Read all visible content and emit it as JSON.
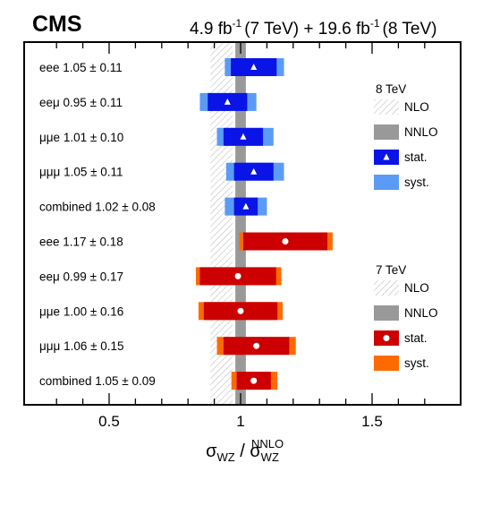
{
  "chart_data": {
    "type": "interval",
    "experiment": "CMS",
    "luminosity": {
      "lumi_7": "4.9 fb",
      "lumi_7_exp": "-1",
      "energy_7": "(7 TeV) + 19.6 fb",
      "lumi_8_exp": "-1",
      "energy_8": "(8 TeV)"
    },
    "xlabel": {
      "main_num": "σ",
      "num_sub": "WZ",
      "slash": " / ",
      "main_den": "σ",
      "den_sub": "WZ",
      "den_sup": "NNLO"
    },
    "xlim": [
      0.2,
      1.8
    ],
    "xticks": [
      {
        "value": 0.5,
        "label": "0.5"
      },
      {
        "value": 1.0,
        "label": "1"
      },
      {
        "value": 1.5,
        "label": "1.5"
      }
    ],
    "nnlo_band": [
      0.98,
      1.02
    ],
    "nlo_band": [
      0.885,
      0.97
    ],
    "series": [
      {
        "energy": "8 TeV",
        "color_stat": "#0a14e6",
        "color_syst": "#5b9bf5",
        "marker": "triangle",
        "rows": [
          {
            "label": "eee 1.05 ± 0.11",
            "value": 1.05,
            "stat": [
              0.963,
              1.137
            ],
            "syst": [
              0.94,
              1.165
            ]
          },
          {
            "label": "eeμ 0.95 ± 0.11",
            "value": 0.95,
            "stat": [
              0.875,
              1.025
            ],
            "syst": [
              0.845,
              1.06
            ]
          },
          {
            "label": "μμe 1.01 ± 0.10",
            "value": 1.01,
            "stat": [
              0.935,
              1.085
            ],
            "syst": [
              0.91,
              1.125
            ]
          },
          {
            "label": "μμμ 1.05 ± 0.11",
            "value": 1.05,
            "stat": [
              0.975,
              1.125
            ],
            "syst": [
              0.945,
              1.165
            ]
          },
          {
            "label": "combined 1.02 ± 0.08",
            "value": 1.02,
            "stat": [
              0.975,
              1.065
            ],
            "syst": [
              0.94,
              1.1
            ]
          }
        ]
      },
      {
        "energy": "7 TeV",
        "color_stat": "#cc0000",
        "color_syst": "#ff6a00",
        "marker": "circle",
        "rows": [
          {
            "label": "eee 1.17 ± 0.18",
            "value": 1.17,
            "stat": [
              1.01,
              1.33
            ],
            "syst": [
              0.995,
              1.35
            ]
          },
          {
            "label": "eeμ 0.99 ± 0.17",
            "value": 0.99,
            "stat": [
              0.845,
              1.135
            ],
            "syst": [
              0.83,
              1.155
            ]
          },
          {
            "label": "μμe 1.00 ± 0.16",
            "value": 1.0,
            "stat": [
              0.86,
              1.14
            ],
            "syst": [
              0.84,
              1.16
            ]
          },
          {
            "label": "μμμ 1.06 ± 0.15",
            "value": 1.06,
            "stat": [
              0.935,
              1.185
            ],
            "syst": [
              0.91,
              1.21
            ]
          },
          {
            "label": "combined 1.05 ± 0.09",
            "value": 1.05,
            "stat": [
              0.985,
              1.115
            ],
            "syst": [
              0.965,
              1.14
            ]
          }
        ]
      }
    ],
    "legends": [
      {
        "title": "8 TeV",
        "entries": [
          {
            "label": "NLO",
            "kind": "nlo"
          },
          {
            "label": "NNLO",
            "kind": "nnlo"
          },
          {
            "label": "stat.",
            "kind": "stat8"
          },
          {
            "label": "syst.",
            "kind": "syst8"
          }
        ]
      },
      {
        "title": "7 TeV",
        "entries": [
          {
            "label": "NLO",
            "kind": "nlo"
          },
          {
            "label": "NNLO",
            "kind": "nnlo"
          },
          {
            "label": "stat.",
            "kind": "stat7"
          },
          {
            "label": "syst.",
            "kind": "syst7"
          }
        ]
      }
    ],
    "colors": {
      "nnlo": "#999999",
      "nlo_hatch": "#b4b4b4",
      "frame": "#000000"
    }
  }
}
